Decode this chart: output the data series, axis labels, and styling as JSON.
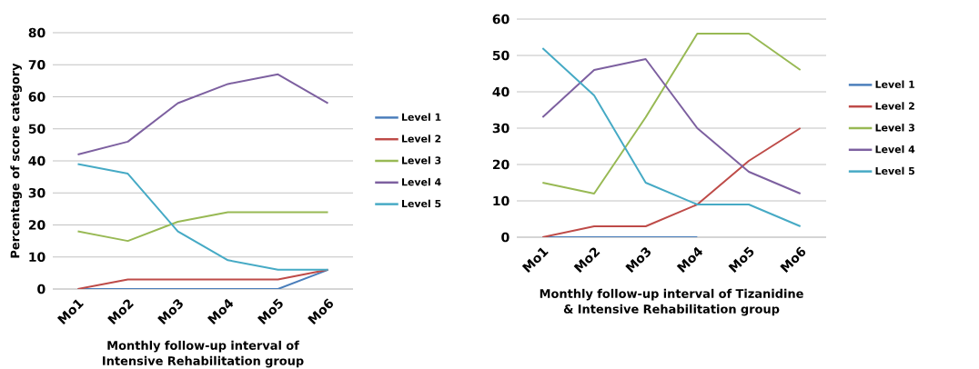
{
  "chart_data": [
    {
      "type": "line",
      "xlabel": "Monthly follow-up interval of Intensive Rehabilitation group",
      "ylabel": "Percentage of score category",
      "categories": [
        "Mo1",
        "Mo2",
        "Mo3",
        "Mo4",
        "Mo5",
        "Mo6"
      ],
      "series": [
        {
          "name": "Level 1",
          "color": "#4a7ebb",
          "values": [
            0,
            0,
            0,
            0,
            0,
            6
          ]
        },
        {
          "name": "Level 2",
          "color": "#be4b48",
          "values": [
            0,
            3,
            3,
            3,
            3,
            6
          ]
        },
        {
          "name": "Level 3",
          "color": "#98b954",
          "values": [
            18,
            15,
            21,
            24,
            24,
            24
          ]
        },
        {
          "name": "Level 4",
          "color": "#7d60a0",
          "values": [
            42,
            46,
            58,
            64,
            67,
            58
          ]
        },
        {
          "name": "Level 5",
          "color": "#46aac5",
          "values": [
            39,
            36,
            18,
            9,
            6,
            6
          ]
        }
      ],
      "ylim": [
        0,
        80
      ],
      "yticks": [
        0,
        10,
        20,
        30,
        40,
        50,
        60,
        70,
        80
      ],
      "grid": "y",
      "legend": "right"
    },
    {
      "type": "line",
      "xlabel": "Monthly follow-up interval of Tizanidine & Intensive Rehabilitation group",
      "categories": [
        "Mo1",
        "Mo2",
        "Mo3",
        "Mo4",
        "Mo5",
        "Mo6"
      ],
      "series": [
        {
          "name": "Level 1",
          "color": "#4a7ebb",
          "values": [
            0,
            0,
            0,
            0,
            null,
            null
          ]
        },
        {
          "name": "Level 2",
          "color": "#be4b48",
          "values": [
            0,
            3,
            3,
            9,
            21,
            30
          ]
        },
        {
          "name": "Level 3",
          "color": "#98b954",
          "values": [
            15,
            12,
            33,
            56,
            56,
            46
          ]
        },
        {
          "name": "Level 4",
          "color": "#7d60a0",
          "values": [
            33,
            46,
            49,
            30,
            18,
            12
          ]
        },
        {
          "name": "Level 5",
          "color": "#46aac5",
          "values": [
            52,
            39,
            15,
            9,
            9,
            3
          ]
        }
      ],
      "ylim": [
        0,
        60
      ],
      "yticks": [
        0,
        10,
        20,
        30,
        40,
        50,
        60
      ],
      "grid": "y",
      "legend": "right"
    }
  ]
}
